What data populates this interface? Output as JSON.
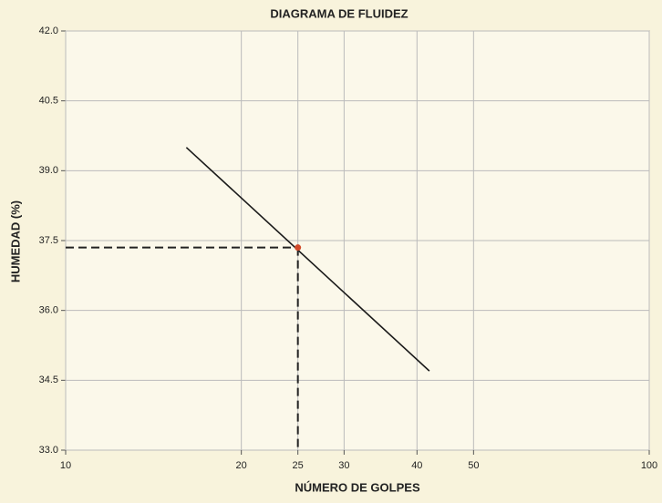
{
  "chart_data": {
    "type": "line",
    "title": "DIAGRAMA DE FLUIDEZ",
    "xlabel": "NÚMERO DE GOLPES",
    "ylabel": "HUMEDAD (%)",
    "xscale": "log",
    "xlim": [
      10,
      100
    ],
    "xticks": [
      10,
      20,
      25,
      30,
      40,
      50,
      100
    ],
    "ylim": [
      33,
      42
    ],
    "yticks": [
      {
        "value": 33,
        "label": "33.0"
      },
      34.5,
      {
        "value": 36,
        "label": "36.0"
      },
      37.5,
      {
        "value": 39,
        "label": "39.0"
      },
      40.5,
      {
        "value": 42,
        "label": "42.0"
      }
    ],
    "grid": true,
    "series": [
      {
        "color": "#1a1a1a",
        "x": [
          16.1,
          42
        ],
        "values": [
          39.5,
          34.7
        ]
      },
      {
        "color": "#d24a2a",
        "marker": "point",
        "dashed_guides": true,
        "x": [
          25
        ],
        "values": [
          37.35
        ]
      }
    ]
  }
}
